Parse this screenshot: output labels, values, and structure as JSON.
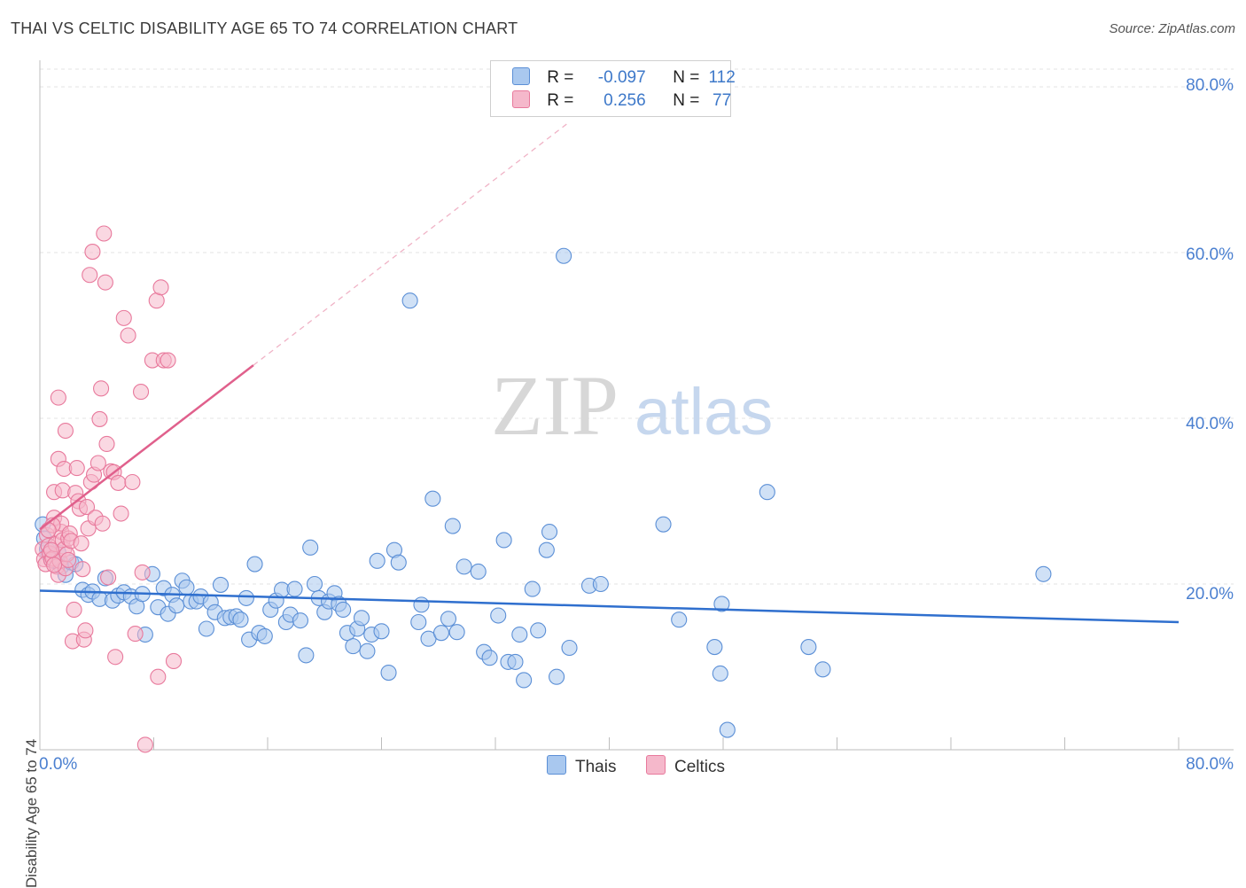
{
  "header": {
    "title": "THAI VS CELTIC DISABILITY AGE 65 TO 74 CORRELATION CHART",
    "source": "Source: ZipAtlas.com"
  },
  "watermark": {
    "zip": "ZIP",
    "atlas": "atlas"
  },
  "legend": {
    "rows": [
      {
        "r_label": "R =",
        "r_value": "-0.097",
        "n_label": "N =",
        "n_value": "112",
        "color": "#a9c8ef"
      },
      {
        "r_label": "R =",
        "r_value": "0.256",
        "n_label": "N =",
        "n_value": "77",
        "color": "#f5b8cb"
      }
    ],
    "series_labels": [
      "Thais",
      "Celtics"
    ]
  },
  "colors": {
    "thai_fill": "#a9c8ef",
    "thai_stroke": "#5b8fd6",
    "thai_line": "#2f6fce",
    "celtic_fill": "#f5b8cb",
    "celtic_stroke": "#e8799c",
    "celtic_line": "#e0608c",
    "tick_text": "#4a7fd0",
    "grid": "#e3e3e3"
  },
  "chart_data": {
    "type": "scatter",
    "title": "THAI VS CELTIC DISABILITY AGE 65 TO 74 CORRELATION CHART",
    "xlabel": "",
    "ylabel": "Disability Age 65 to 74",
    "xlim": [
      0,
      80
    ],
    "ylim": [
      0,
      80
    ],
    "x_tick_labels": [
      "0.0%",
      "80.0%"
    ],
    "y_tick_labels": [
      "20.0%",
      "40.0%",
      "60.0%",
      "80.0%"
    ],
    "y_ticks": [
      20,
      40,
      60,
      80
    ],
    "grid": true,
    "legend_position": "top-center",
    "series": [
      {
        "name": "Thais",
        "r": -0.097,
        "n": 112,
        "trend": {
          "x0": 0,
          "y0": 19.2,
          "x1": 80,
          "y1": 15.4
        },
        "points": [
          [
            0.2,
            27.2
          ],
          [
            0.3,
            25.5
          ],
          [
            0.5,
            24.2
          ],
          [
            0.6,
            23.6
          ],
          [
            0.8,
            23.0
          ],
          [
            1.0,
            22.8
          ],
          [
            1.3,
            23.8
          ],
          [
            1.5,
            22.1
          ],
          [
            1.8,
            21.1
          ],
          [
            2.2,
            22.6
          ],
          [
            2.5,
            22.4
          ],
          [
            3.0,
            19.3
          ],
          [
            3.4,
            18.7
          ],
          [
            3.7,
            19.1
          ],
          [
            4.2,
            18.2
          ],
          [
            4.6,
            20.7
          ],
          [
            5.1,
            18.0
          ],
          [
            5.5,
            18.6
          ],
          [
            5.9,
            19.0
          ],
          [
            6.4,
            18.5
          ],
          [
            6.8,
            17.3
          ],
          [
            7.2,
            18.8
          ],
          [
            7.4,
            13.9
          ],
          [
            7.9,
            21.2
          ],
          [
            8.3,
            17.2
          ],
          [
            8.7,
            19.5
          ],
          [
            9.0,
            16.4
          ],
          [
            9.3,
            18.7
          ],
          [
            9.6,
            17.4
          ],
          [
            10.0,
            20.4
          ],
          [
            10.3,
            19.6
          ],
          [
            10.6,
            17.9
          ],
          [
            11.0,
            17.9
          ],
          [
            11.3,
            18.5
          ],
          [
            11.7,
            14.6
          ],
          [
            12.0,
            17.8
          ],
          [
            12.3,
            16.6
          ],
          [
            12.7,
            19.9
          ],
          [
            13.0,
            15.9
          ],
          [
            13.4,
            16.0
          ],
          [
            13.8,
            16.1
          ],
          [
            14.1,
            15.7
          ],
          [
            14.5,
            18.3
          ],
          [
            14.7,
            13.3
          ],
          [
            15.1,
            22.4
          ],
          [
            15.4,
            14.1
          ],
          [
            15.8,
            13.7
          ],
          [
            16.2,
            16.9
          ],
          [
            16.6,
            18.0
          ],
          [
            17.0,
            19.3
          ],
          [
            17.3,
            15.4
          ],
          [
            17.6,
            16.3
          ],
          [
            17.9,
            19.4
          ],
          [
            18.3,
            15.6
          ],
          [
            18.7,
            11.4
          ],
          [
            19.0,
            24.4
          ],
          [
            19.3,
            20.0
          ],
          [
            19.6,
            18.3
          ],
          [
            20.0,
            16.6
          ],
          [
            20.3,
            17.9
          ],
          [
            20.7,
            18.9
          ],
          [
            21.0,
            17.6
          ],
          [
            21.3,
            16.9
          ],
          [
            21.6,
            14.1
          ],
          [
            22.0,
            12.5
          ],
          [
            22.3,
            14.6
          ],
          [
            22.6,
            15.9
          ],
          [
            23.0,
            11.9
          ],
          [
            23.3,
            13.9
          ],
          [
            23.7,
            22.8
          ],
          [
            24.0,
            14.3
          ],
          [
            24.5,
            9.3
          ],
          [
            24.9,
            24.1
          ],
          [
            25.2,
            22.6
          ],
          [
            26.0,
            54.2
          ],
          [
            26.6,
            15.4
          ],
          [
            26.8,
            17.5
          ],
          [
            27.3,
            13.4
          ],
          [
            27.6,
            30.3
          ],
          [
            28.2,
            14.1
          ],
          [
            28.7,
            15.8
          ],
          [
            29.0,
            27.0
          ],
          [
            29.3,
            14.2
          ],
          [
            29.8,
            22.1
          ],
          [
            30.8,
            21.5
          ],
          [
            31.2,
            11.8
          ],
          [
            31.6,
            11.1
          ],
          [
            32.2,
            16.2
          ],
          [
            32.6,
            25.3
          ],
          [
            32.9,
            10.6
          ],
          [
            33.4,
            10.6
          ],
          [
            33.7,
            13.9
          ],
          [
            34.0,
            8.4
          ],
          [
            34.6,
            19.4
          ],
          [
            35.0,
            14.4
          ],
          [
            35.6,
            24.1
          ],
          [
            35.8,
            26.3
          ],
          [
            36.3,
            8.8
          ],
          [
            37.2,
            12.3
          ],
          [
            36.8,
            59.6
          ],
          [
            38.6,
            19.8
          ],
          [
            39.4,
            20.0
          ],
          [
            43.8,
            27.2
          ],
          [
            44.9,
            15.7
          ],
          [
            47.4,
            12.4
          ],
          [
            47.8,
            9.2
          ],
          [
            47.9,
            17.6
          ],
          [
            48.3,
            2.4
          ],
          [
            51.1,
            31.1
          ],
          [
            54.0,
            12.4
          ],
          [
            55.0,
            9.7
          ],
          [
            70.5,
            21.2
          ]
        ]
      },
      {
        "name": "Celtics",
        "r": 0.256,
        "n": 77,
        "trend": {
          "x0": 0,
          "y0": 26.6,
          "x1": 15.0,
          "y1": 46.4
        },
        "trend_extension": {
          "x0": 15.0,
          "y0": 46.4,
          "x1": 37.0,
          "y1": 75.5
        },
        "points": [
          [
            0.2,
            24.2
          ],
          [
            0.3,
            23.0
          ],
          [
            0.4,
            22.4
          ],
          [
            0.5,
            25.9
          ],
          [
            0.6,
            24.6
          ],
          [
            0.7,
            23.7
          ],
          [
            0.8,
            22.9
          ],
          [
            0.9,
            23.1
          ],
          [
            1.0,
            28.0
          ],
          [
            1.1,
            24.8
          ],
          [
            1.2,
            22.1
          ],
          [
            1.3,
            21.1
          ],
          [
            1.4,
            22.8
          ],
          [
            1.5,
            26.3
          ],
          [
            1.6,
            25.3
          ],
          [
            1.7,
            24.2
          ],
          [
            1.8,
            21.9
          ],
          [
            1.9,
            23.6
          ],
          [
            1.0,
            31.1
          ],
          [
            1.3,
            35.1
          ],
          [
            1.5,
            27.3
          ],
          [
            1.6,
            31.3
          ],
          [
            1.8,
            38.5
          ],
          [
            1.3,
            42.5
          ],
          [
            1.7,
            33.9
          ],
          [
            2.0,
            25.5
          ],
          [
            2.1,
            26.1
          ],
          [
            2.2,
            25.2
          ],
          [
            2.3,
            13.1
          ],
          [
            2.4,
            16.9
          ],
          [
            2.5,
            31.0
          ],
          [
            2.6,
            34.0
          ],
          [
            2.7,
            30.0
          ],
          [
            2.8,
            29.1
          ],
          [
            2.9,
            24.9
          ],
          [
            3.0,
            21.8
          ],
          [
            3.1,
            13.3
          ],
          [
            3.2,
            14.4
          ],
          [
            3.3,
            29.3
          ],
          [
            3.4,
            26.7
          ],
          [
            3.5,
            57.3
          ],
          [
            3.6,
            32.3
          ],
          [
            3.7,
            60.1
          ],
          [
            3.8,
            33.2
          ],
          [
            3.9,
            28.0
          ],
          [
            4.1,
            34.6
          ],
          [
            4.2,
            39.9
          ],
          [
            4.3,
            43.6
          ],
          [
            4.4,
            27.3
          ],
          [
            4.5,
            62.3
          ],
          [
            4.6,
            56.4
          ],
          [
            4.7,
            36.9
          ],
          [
            4.8,
            20.8
          ],
          [
            5.0,
            33.6
          ],
          [
            5.2,
            33.5
          ],
          [
            5.3,
            11.2
          ],
          [
            5.5,
            32.2
          ],
          [
            5.7,
            28.5
          ],
          [
            5.9,
            52.1
          ],
          [
            6.2,
            50.0
          ],
          [
            6.5,
            32.3
          ],
          [
            6.7,
            14.0
          ],
          [
            7.1,
            43.2
          ],
          [
            7.2,
            21.4
          ],
          [
            7.4,
            0.6
          ],
          [
            7.9,
            47.0
          ],
          [
            8.2,
            54.2
          ],
          [
            8.5,
            55.8
          ],
          [
            8.3,
            8.8
          ],
          [
            8.7,
            47.0
          ],
          [
            9.0,
            47.0
          ],
          [
            9.4,
            10.7
          ],
          [
            0.9,
            27.1
          ],
          [
            1.0,
            22.3
          ],
          [
            0.8,
            24.1
          ],
          [
            0.6,
            26.5
          ],
          [
            2.0,
            22.9
          ]
        ]
      }
    ]
  }
}
